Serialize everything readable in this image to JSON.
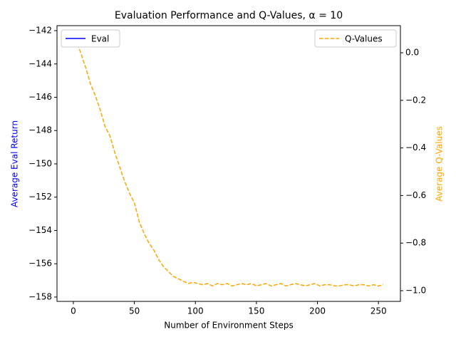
{
  "chart_data": {
    "type": "line",
    "title": "Evaluation Performance and Q-Values, α = 10",
    "x_label": "Number of Environment Steps",
    "y_label": "Average Eval Return",
    "y2_label": "Average Q-Values",
    "xlim": [
      -13.4,
      268
    ],
    "xticks": [
      0,
      50,
      100,
      150,
      200,
      250
    ],
    "ylim": [
      -158.26,
      -141.7
    ],
    "yticks": [
      {
        "value": -142,
        "label": "−142"
      },
      {
        "value": -144,
        "label": "−144"
      },
      {
        "value": -146,
        "label": "−146"
      },
      {
        "value": -148,
        "label": "−148"
      },
      {
        "value": -150,
        "label": "−150"
      },
      {
        "value": -152,
        "label": "−152"
      },
      {
        "value": -154,
        "label": "−154"
      },
      {
        "value": -156,
        "label": "−156"
      },
      {
        "value": -158,
        "label": "−158"
      }
    ],
    "y2lim": [
      -1.045,
      0.114
    ],
    "y2ticks": [
      {
        "value": 0,
        "label": "0.0"
      },
      {
        "value": -0.2,
        "label": "−0.2"
      },
      {
        "value": -0.4,
        "label": "−0.4"
      },
      {
        "value": -0.6,
        "label": "−0.6"
      },
      {
        "value": -0.8,
        "label": "−0.8"
      },
      {
        "value": -1.0,
        "label": "−1.0"
      }
    ],
    "y_label_color": "#0000ff",
    "y2_label_color": "#ffa500",
    "series": [
      {
        "name": "Eval",
        "color": "#0000ff",
        "dash": false,
        "legend": "upper left",
        "x": [],
        "values": []
      },
      {
        "name": "Q-Values",
        "color": "#ffa500",
        "dash": true,
        "axis": "y2",
        "legend": "upper right",
        "x": [
          2,
          6,
          10,
          14,
          18,
          22,
          26,
          30,
          34,
          38,
          42,
          46,
          50,
          54,
          58,
          62,
          66,
          70,
          74,
          78,
          82,
          86,
          90,
          94,
          98,
          102,
          106,
          110,
          114,
          118,
          122,
          126,
          130,
          134,
          138,
          142,
          146,
          150,
          154,
          158,
          162,
          166,
          170,
          174,
          178,
          182,
          186,
          190,
          194,
          198,
          202,
          206,
          210,
          214,
          218,
          222,
          226,
          230,
          234,
          238,
          242,
          246,
          250,
          254
        ],
        "values": [
          0.06,
          0.0,
          -0.06,
          -0.13,
          -0.18,
          -0.24,
          -0.31,
          -0.35,
          -0.42,
          -0.48,
          -0.54,
          -0.59,
          -0.63,
          -0.71,
          -0.76,
          -0.8,
          -0.83,
          -0.87,
          -0.9,
          -0.92,
          -0.94,
          -0.95,
          -0.96,
          -0.97,
          -0.965,
          -0.97,
          -0.975,
          -0.97,
          -0.98,
          -0.97,
          -0.975,
          -0.97,
          -0.98,
          -0.975,
          -0.97,
          -0.975,
          -0.97,
          -0.98,
          -0.975,
          -0.97,
          -0.98,
          -0.975,
          -0.97,
          -0.98,
          -0.975,
          -0.97,
          -0.975,
          -0.98,
          -0.975,
          -0.97,
          -0.98,
          -0.975,
          -0.975,
          -0.98,
          -0.98,
          -0.975,
          -0.975,
          -0.98,
          -0.975,
          -0.975,
          -0.98,
          -0.975,
          -0.98,
          -0.975
        ]
      }
    ]
  }
}
